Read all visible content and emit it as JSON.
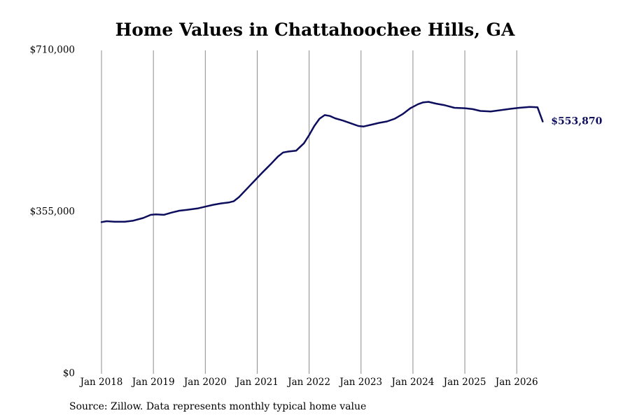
{
  "chart_data": {
    "type": "line",
    "title": "Home Values in Chattahoochee Hills, GA",
    "source": "Source: Zillow. Data represents monthly typical home value",
    "xlabel": "",
    "ylabel": "",
    "ylim": [
      0,
      710000
    ],
    "y_ticks": [
      {
        "value": 0,
        "label": "$0"
      },
      {
        "value": 355000,
        "label": "$355,000"
      },
      {
        "value": 710000,
        "label": "$710,000"
      }
    ],
    "x_ticks": [
      {
        "value": 2018.0,
        "label": "Jan 2018"
      },
      {
        "value": 2019.0,
        "label": "Jan 2019"
      },
      {
        "value": 2020.0,
        "label": "Jan 2020"
      },
      {
        "value": 2021.0,
        "label": "Jan 2021"
      },
      {
        "value": 2022.0,
        "label": "Jan 2022"
      },
      {
        "value": 2023.0,
        "label": "Jan 2023"
      },
      {
        "value": 2024.0,
        "label": "Jan 2024"
      },
      {
        "value": 2025.0,
        "label": "Jan 2025"
      },
      {
        "value": 2026.0,
        "label": "Jan 2026"
      }
    ],
    "xlim": [
      2018.0,
      2026.55
    ],
    "grid": "vertical",
    "line_color": "#0d0d5e",
    "end_label": "$553,870",
    "series": [
      {
        "x": [
          2018.0,
          2018.1,
          2018.25,
          2018.45,
          2018.6,
          2018.8,
          2018.95,
          2019.05,
          2019.2,
          2019.35,
          2019.5,
          2019.65,
          2019.85,
          2020.0,
          2020.15,
          2020.3,
          2020.45,
          2020.55,
          2020.65,
          2020.8,
          2020.95,
          2021.1,
          2021.25,
          2021.4,
          2021.5,
          2021.6,
          2021.75,
          2021.9,
          2022.0,
          2022.1,
          2022.2,
          2022.3,
          2022.4,
          2022.5,
          2022.65,
          2022.8,
          2022.95,
          2023.05,
          2023.2,
          2023.35,
          2023.5,
          2023.65,
          2023.8,
          2023.95,
          2024.1,
          2024.2,
          2024.3,
          2024.45,
          2024.6,
          2024.8,
          2025.0,
          2025.15,
          2025.3,
          2025.5,
          2025.7,
          2025.9,
          2026.05,
          2026.25,
          2026.4,
          2026.5
        ],
        "y": [
          333000,
          335000,
          334000,
          334000,
          336000,
          342000,
          349000,
          350000,
          349000,
          354000,
          358000,
          360000,
          363000,
          367000,
          371000,
          374000,
          376000,
          379000,
          388000,
          406000,
          424000,
          442000,
          459000,
          477000,
          486000,
          488000,
          490000,
          506000,
          524000,
          544000,
          560000,
          568000,
          566000,
          561000,
          556000,
          550000,
          544000,
          543000,
          547000,
          551000,
          554000,
          560000,
          570000,
          583000,
          592000,
          596000,
          597000,
          593000,
          590000,
          584000,
          583000,
          581000,
          577000,
          576000,
          579000,
          582000,
          584000,
          586000,
          585000,
          553870
        ]
      }
    ]
  }
}
